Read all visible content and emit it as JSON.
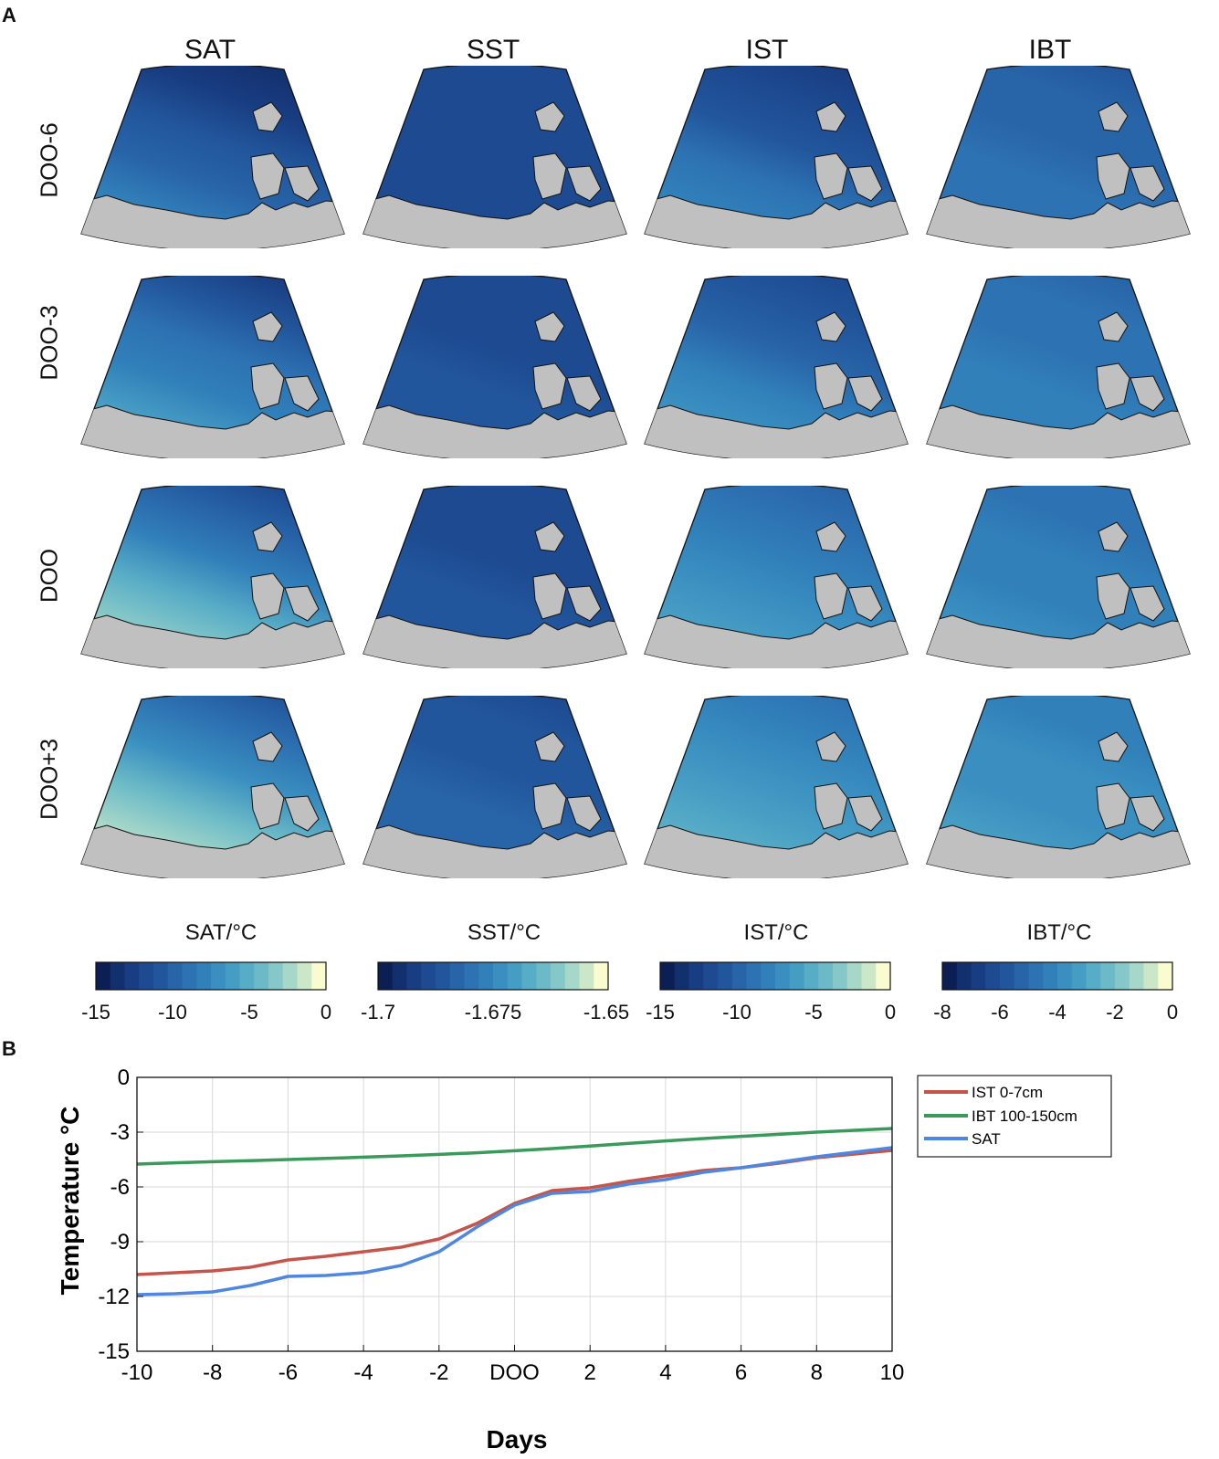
{
  "panel_a_label": "A",
  "panel_b_label": "B",
  "columns": [
    "SAT",
    "SST",
    "IST",
    "IBT"
  ],
  "rows": [
    "DOO-6",
    "DOO-3",
    "DOO",
    "DOO+3"
  ],
  "colorbars": [
    {
      "title": "SAT/°C",
      "ticks": [
        "-15",
        "-10",
        "-5",
        "0"
      ],
      "range": [
        -15,
        0
      ]
    },
    {
      "title": "SST/°C",
      "ticks": [
        "-1.7",
        "-1.675",
        "-1.65"
      ],
      "range": [
        -1.7,
        -1.65
      ]
    },
    {
      "title": "IST/°C",
      "ticks": [
        "-15",
        "-10",
        "-5",
        "0"
      ],
      "range": [
        -15,
        0
      ]
    },
    {
      "title": "IBT/°C",
      "ticks": [
        "-8",
        "-6",
        "-4",
        "-2",
        "0"
      ],
      "range": [
        -8,
        0
      ]
    }
  ],
  "colors": {
    "land": "#c0c0c0",
    "palette": [
      "#0c1f55",
      "#13306e",
      "#193d82",
      "#1d4a91",
      "#22569c",
      "#2864a8",
      "#2d72b2",
      "#3180ba",
      "#3a8fc0",
      "#469dc4",
      "#57acc6",
      "#6cbac7",
      "#86c8c9",
      "#a6d7c9",
      "#cbe7c8",
      "#fbfbd0"
    ]
  },
  "chart_data": {
    "type": "line",
    "xlabel": "Days",
    "ylabel": "Temperature °C",
    "x": [
      -10,
      -9,
      -8,
      -7,
      -6,
      -5,
      -4,
      -3,
      -2,
      -1,
      0,
      1,
      2,
      3,
      4,
      5,
      6,
      7,
      8,
      9,
      10
    ],
    "xticks": [
      -10,
      -8,
      -6,
      -4,
      -2,
      0,
      2,
      4,
      6,
      8,
      10
    ],
    "xtick_labels": [
      "-10",
      "-8",
      "-6",
      "-4",
      "-2",
      "DOO",
      "2",
      "4",
      "6",
      "8",
      "10"
    ],
    "yticks": [
      0,
      -3,
      -6,
      -9,
      -12,
      -15
    ],
    "ytick_labels": [
      "0",
      "-3",
      "-6",
      "-9",
      "-12",
      "-15"
    ],
    "xlim": [
      -10,
      10
    ],
    "ylim": [
      -15,
      0
    ],
    "grid": true,
    "legend_position": "outside-top-right",
    "series": [
      {
        "name": "IST 0-7cm",
        "color": "#c5554a",
        "values": [
          -10.8,
          -10.7,
          -10.6,
          -10.4,
          -10.0,
          -9.8,
          -9.55,
          -9.3,
          -8.85,
          -8.0,
          -6.9,
          -6.2,
          -6.05,
          -5.7,
          -5.4,
          -5.1,
          -4.95,
          -4.7,
          -4.4,
          -4.2,
          -4.0
        ]
      },
      {
        "name": "IBT 100-150cm",
        "color": "#3a9a5b",
        "values": [
          -4.75,
          -4.68,
          -4.62,
          -4.56,
          -4.5,
          -4.44,
          -4.37,
          -4.3,
          -4.22,
          -4.13,
          -4.02,
          -3.9,
          -3.76,
          -3.62,
          -3.48,
          -3.35,
          -3.23,
          -3.12,
          -3.0,
          -2.9,
          -2.8
        ]
      },
      {
        "name": "SAT",
        "color": "#4f86e0",
        "values": [
          -11.9,
          -11.85,
          -11.75,
          -11.4,
          -10.9,
          -10.85,
          -10.7,
          -10.3,
          -9.55,
          -8.2,
          -7.0,
          -6.35,
          -6.25,
          -5.85,
          -5.6,
          -5.2,
          -4.95,
          -4.65,
          -4.35,
          -4.1,
          -3.85
        ]
      }
    ]
  }
}
